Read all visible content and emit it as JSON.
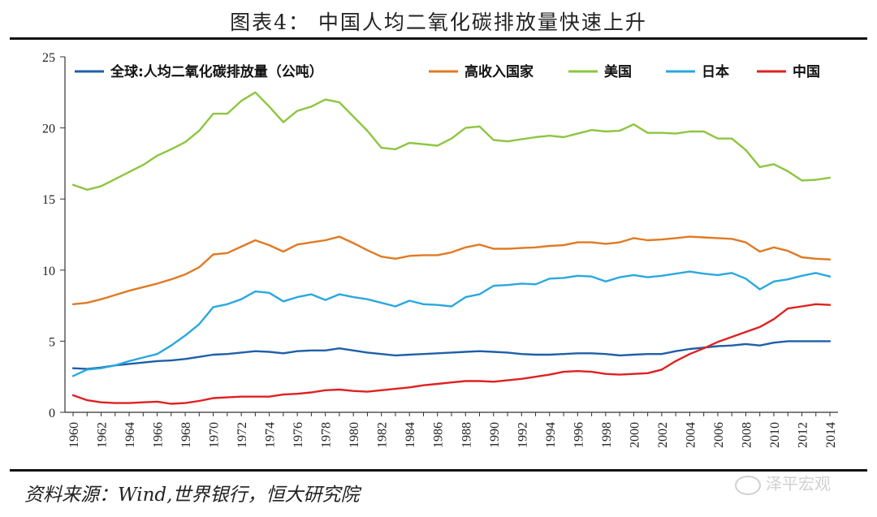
{
  "title": "图表4：  中国人均二氧化碳排放量快速上升",
  "source": "资料来源：Wind,世界银行，恒大研究院",
  "watermark": "泽平宏观",
  "chart_data": {
    "type": "line",
    "x": [
      1960,
      1961,
      1962,
      1963,
      1964,
      1965,
      1966,
      1967,
      1968,
      1969,
      1970,
      1971,
      1972,
      1973,
      1974,
      1975,
      1976,
      1977,
      1978,
      1979,
      1980,
      1981,
      1982,
      1983,
      1984,
      1985,
      1986,
      1987,
      1988,
      1989,
      1990,
      1991,
      1992,
      1993,
      1994,
      1995,
      1996,
      1997,
      1998,
      1999,
      2000,
      2001,
      2002,
      2003,
      2004,
      2005,
      2006,
      2007,
      2008,
      2009,
      2010,
      2011,
      2012,
      2013,
      2014
    ],
    "xticks": [
      "1960",
      "1962",
      "1964",
      "1966",
      "1968",
      "1970",
      "1972",
      "1974",
      "1976",
      "1978",
      "1980",
      "1982",
      "1984",
      "1986",
      "1988",
      "1990",
      "1992",
      "1994",
      "1996",
      "1998",
      "2000",
      "2002",
      "2004",
      "2006",
      "2008",
      "2010",
      "2012",
      "2014"
    ],
    "yticks": [
      "0",
      "5",
      "10",
      "15",
      "20",
      "25"
    ],
    "ylim": [
      0,
      25
    ],
    "legend_position": "top",
    "series": [
      {
        "name": "全球:人均二氧化碳排放量（公吨）",
        "color": "#1f5fa8",
        "values": [
          3.1,
          3.05,
          3.15,
          3.3,
          3.4,
          3.5,
          3.6,
          3.65,
          3.75,
          3.9,
          4.05,
          4.1,
          4.2,
          4.3,
          4.25,
          4.15,
          4.3,
          4.35,
          4.35,
          4.5,
          4.35,
          4.2,
          4.1,
          4.0,
          4.05,
          4.1,
          4.15,
          4.2,
          4.25,
          4.3,
          4.25,
          4.2,
          4.1,
          4.05,
          4.05,
          4.1,
          4.15,
          4.15,
          4.1,
          4.0,
          4.05,
          4.1,
          4.1,
          4.3,
          4.45,
          4.55,
          4.65,
          4.7,
          4.8,
          4.7,
          4.9,
          5.0,
          5.0,
          5.0,
          5.0
        ]
      },
      {
        "name": "高收入国家",
        "color": "#e07a22",
        "values": [
          7.6,
          7.7,
          7.95,
          8.25,
          8.55,
          8.8,
          9.05,
          9.35,
          9.7,
          10.2,
          11.1,
          11.2,
          11.65,
          12.1,
          11.75,
          11.3,
          11.8,
          11.95,
          12.1,
          12.35,
          11.9,
          11.4,
          10.95,
          10.8,
          11.0,
          11.05,
          11.05,
          11.25,
          11.6,
          11.8,
          11.5,
          11.5,
          11.55,
          11.6,
          11.7,
          11.75,
          11.95,
          11.95,
          11.85,
          11.95,
          12.25,
          12.1,
          12.15,
          12.25,
          12.35,
          12.3,
          12.25,
          12.2,
          11.95,
          11.3,
          11.6,
          11.35,
          10.9,
          10.8,
          10.75
        ]
      },
      {
        "name": "美国",
        "color": "#8cc63f",
        "values": [
          16.0,
          15.65,
          15.9,
          16.4,
          16.9,
          17.4,
          18.05,
          18.5,
          19.0,
          19.8,
          21.0,
          21.0,
          21.9,
          22.5,
          21.5,
          20.4,
          21.2,
          21.5,
          22.0,
          21.8,
          20.8,
          19.8,
          18.6,
          18.5,
          18.95,
          18.85,
          18.75,
          19.25,
          20.0,
          20.1,
          19.15,
          19.05,
          19.2,
          19.35,
          19.45,
          19.35,
          19.6,
          19.85,
          19.75,
          19.8,
          20.25,
          19.65,
          19.65,
          19.6,
          19.75,
          19.75,
          19.25,
          19.25,
          18.45,
          17.25,
          17.45,
          16.95,
          16.3,
          16.35,
          16.5
        ]
      },
      {
        "name": "日本",
        "color": "#29a8df",
        "values": [
          2.55,
          3.0,
          3.1,
          3.3,
          3.6,
          3.85,
          4.1,
          4.7,
          5.4,
          6.2,
          7.4,
          7.6,
          7.95,
          8.5,
          8.4,
          7.8,
          8.1,
          8.3,
          7.9,
          8.3,
          8.1,
          7.95,
          7.7,
          7.45,
          7.85,
          7.6,
          7.55,
          7.45,
          8.1,
          8.3,
          8.9,
          8.95,
          9.05,
          9.0,
          9.4,
          9.45,
          9.6,
          9.55,
          9.2,
          9.5,
          9.65,
          9.5,
          9.6,
          9.75,
          9.9,
          9.75,
          9.65,
          9.8,
          9.4,
          8.65,
          9.2,
          9.35,
          9.6,
          9.8,
          9.55
        ]
      },
      {
        "name": "中国",
        "color": "#e02020",
        "values": [
          1.2,
          0.85,
          0.7,
          0.65,
          0.65,
          0.7,
          0.75,
          0.6,
          0.65,
          0.8,
          1.0,
          1.05,
          1.1,
          1.1,
          1.1,
          1.25,
          1.3,
          1.4,
          1.55,
          1.6,
          1.5,
          1.45,
          1.55,
          1.65,
          1.75,
          1.9,
          2.0,
          2.1,
          2.2,
          2.2,
          2.15,
          2.25,
          2.35,
          2.5,
          2.65,
          2.85,
          2.9,
          2.85,
          2.7,
          2.65,
          2.7,
          2.75,
          3.0,
          3.6,
          4.1,
          4.5,
          4.95,
          5.3,
          5.65,
          6.0,
          6.55,
          7.3,
          7.45,
          7.6,
          7.55
        ]
      }
    ]
  }
}
